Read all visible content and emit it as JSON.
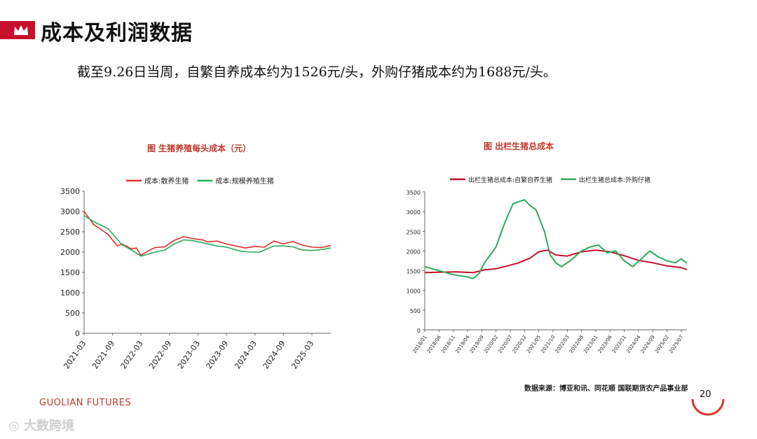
{
  "page": {
    "title": "成本及利润数据",
    "subtitle": "截至9.26日当周，自繁自养成本约为1526元/头，外购仔猪成本约为1688元/头。",
    "source": "数据来源：博亚和讯、同花顺 国联期货农产品事业部",
    "brand": "GUOLIAN FUTURES",
    "page_number": "20",
    "watermark": "大数跨境",
    "accent_color": "#c8102e"
  },
  "chart_data": [
    {
      "type": "line",
      "title": "图 生猪养殖每头成本（元）",
      "x_start": "2021-03",
      "x_end": "2025-07",
      "xticks": [
        "2021-03",
        "2021-09",
        "2022-03",
        "2022-09",
        "2023-03",
        "2023-09",
        "2024-03",
        "2024-09",
        "2025-03"
      ],
      "ylim": [
        0,
        3500
      ],
      "yticks": [
        0,
        500,
        1000,
        1500,
        2000,
        2500,
        3000,
        3500
      ],
      "legend": "top",
      "series": [
        {
          "name": "成本:散养生猪",
          "color": "#e0302a",
          "points": [
            [
              "2021-03",
              3000
            ],
            [
              "2021-05",
              2680
            ],
            [
              "2021-08",
              2440
            ],
            [
              "2021-10",
              2150
            ],
            [
              "2021-11",
              2200
            ],
            [
              "2022-01",
              2080
            ],
            [
              "2022-02",
              2100
            ],
            [
              "2022-03",
              1920
            ],
            [
              "2022-05",
              2060
            ],
            [
              "2022-06",
              2110
            ],
            [
              "2022-08",
              2130
            ],
            [
              "2022-10",
              2290
            ],
            [
              "2022-12",
              2380
            ],
            [
              "2023-02",
              2330
            ],
            [
              "2023-04",
              2300
            ],
            [
              "2023-05",
              2250
            ],
            [
              "2023-07",
              2270
            ],
            [
              "2023-09",
              2200
            ],
            [
              "2023-11",
              2150
            ],
            [
              "2024-01",
              2100
            ],
            [
              "2024-03",
              2140
            ],
            [
              "2024-05",
              2120
            ],
            [
              "2024-07",
              2270
            ],
            [
              "2024-09",
              2200
            ],
            [
              "2024-11",
              2260
            ],
            [
              "2025-01",
              2170
            ],
            [
              "2025-03",
              2120
            ],
            [
              "2025-05",
              2110
            ],
            [
              "2025-07",
              2160
            ]
          ]
        },
        {
          "name": "成本:规模养殖生猪",
          "color": "#2eaa5a",
          "points": [
            [
              "2021-03",
              2900
            ],
            [
              "2021-05",
              2750
            ],
            [
              "2021-08",
              2580
            ],
            [
              "2021-11",
              2180
            ],
            [
              "2022-01",
              2050
            ],
            [
              "2022-03",
              1900
            ],
            [
              "2022-06",
              2000
            ],
            [
              "2022-08",
              2050
            ],
            [
              "2022-10",
              2200
            ],
            [
              "2022-12",
              2300
            ],
            [
              "2023-02",
              2280
            ],
            [
              "2023-04",
              2230
            ],
            [
              "2023-07",
              2150
            ],
            [
              "2023-09",
              2120
            ],
            [
              "2023-12",
              2020
            ],
            [
              "2024-02",
              2000
            ],
            [
              "2024-04",
              2000
            ],
            [
              "2024-07",
              2150
            ],
            [
              "2024-09",
              2150
            ],
            [
              "2024-11",
              2130
            ],
            [
              "2025-01",
              2050
            ],
            [
              "2025-03",
              2040
            ],
            [
              "2025-05",
              2060
            ],
            [
              "2025-07",
              2100
            ]
          ]
        }
      ]
    },
    {
      "type": "line",
      "title": "图 出栏生猪总成本",
      "x_start": "2018-01",
      "x_end": "2025-09",
      "xticks": [
        "2018/01",
        "2018/06",
        "2018/11",
        "2019/04",
        "2019/09",
        "2020/02",
        "2020/07",
        "2020/12",
        "2021/05",
        "2021/10",
        "2022/03",
        "2022/08",
        "2023/01",
        "2023/06",
        "2023/11",
        "2024/04",
        "2024/09",
        "2025/02",
        "2025/07"
      ],
      "ylim": [
        0,
        3500
      ],
      "yticks": [
        0,
        500,
        1000,
        1500,
        2000,
        2500,
        3000,
        3500
      ],
      "legend": "top",
      "series": [
        {
          "name": "出栏生猪总成本:自繁自养生猪",
          "color": "#c8102e",
          "points": [
            [
              "2018-01",
              1450
            ],
            [
              "2018-06",
              1460
            ],
            [
              "2018-12",
              1470
            ],
            [
              "2019-06",
              1450
            ],
            [
              "2019-10",
              1520
            ],
            [
              "2020-02",
              1550
            ],
            [
              "2020-06",
              1620
            ],
            [
              "2020-10",
              1700
            ],
            [
              "2021-02",
              1820
            ],
            [
              "2021-05",
              1980
            ],
            [
              "2021-08",
              2020
            ],
            [
              "2021-11",
              1900
            ],
            [
              "2022-03",
              1870
            ],
            [
              "2022-08",
              1980
            ],
            [
              "2023-01",
              2020
            ],
            [
              "2023-06",
              1980
            ],
            [
              "2023-11",
              1880
            ],
            [
              "2024-04",
              1760
            ],
            [
              "2024-09",
              1700
            ],
            [
              "2025-02",
              1620
            ],
            [
              "2025-07",
              1580
            ],
            [
              "2025-09",
              1526
            ]
          ]
        },
        {
          "name": "出栏生猪总成本:外购仔猪",
          "color": "#2eaa5a",
          "points": [
            [
              "2018-01",
              1600
            ],
            [
              "2018-06",
              1500
            ],
            [
              "2018-11",
              1400
            ],
            [
              "2019-04",
              1340
            ],
            [
              "2019-06",
              1300
            ],
            [
              "2019-08",
              1420
            ],
            [
              "2019-10",
              1700
            ],
            [
              "2020-02",
              2100
            ],
            [
              "2020-05",
              2700
            ],
            [
              "2020-08",
              3200
            ],
            [
              "2020-10",
              3250
            ],
            [
              "2020-12",
              3300
            ],
            [
              "2021-02",
              3150
            ],
            [
              "2021-04",
              3050
            ],
            [
              "2021-07",
              2500
            ],
            [
              "2021-09",
              1900
            ],
            [
              "2021-11",
              1700
            ],
            [
              "2022-01",
              1600
            ],
            [
              "2022-04",
              1750
            ],
            [
              "2022-08",
              2000
            ],
            [
              "2022-11",
              2100
            ],
            [
              "2023-02",
              2150
            ],
            [
              "2023-05",
              1950
            ],
            [
              "2023-08",
              2000
            ],
            [
              "2023-11",
              1750
            ],
            [
              "2024-02",
              1600
            ],
            [
              "2024-05",
              1800
            ],
            [
              "2024-08",
              2000
            ],
            [
              "2024-11",
              1850
            ],
            [
              "2025-02",
              1750
            ],
            [
              "2025-05",
              1700
            ],
            [
              "2025-07",
              1800
            ],
            [
              "2025-09",
              1688
            ]
          ]
        }
      ]
    }
  ]
}
